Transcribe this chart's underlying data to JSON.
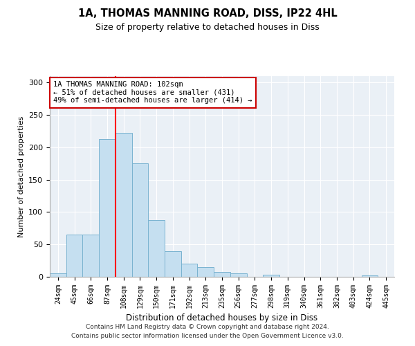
{
  "title1": "1A, THOMAS MANNING ROAD, DISS, IP22 4HL",
  "title2": "Size of property relative to detached houses in Diss",
  "xlabel": "Distribution of detached houses by size in Diss",
  "ylabel": "Number of detached properties",
  "bar_labels": [
    "24sqm",
    "45sqm",
    "66sqm",
    "87sqm",
    "108sqm",
    "129sqm",
    "150sqm",
    "171sqm",
    "192sqm",
    "213sqm",
    "235sqm",
    "256sqm",
    "277sqm",
    "298sqm",
    "319sqm",
    "340sqm",
    "361sqm",
    "382sqm",
    "403sqm",
    "424sqm",
    "445sqm"
  ],
  "bar_values": [
    5,
    65,
    65,
    213,
    222,
    175,
    88,
    40,
    20,
    15,
    7,
    5,
    0,
    3,
    0,
    0,
    0,
    0,
    0,
    2,
    0
  ],
  "bar_color": "#c5dff0",
  "bar_edge_color": "#7ab3d0",
  "red_line_x": 3.5,
  "annotation_text": "1A THOMAS MANNING ROAD: 102sqm\n← 51% of detached houses are smaller (431)\n49% of semi-detached houses are larger (414) →",
  "annotation_box_color": "#ffffff",
  "annotation_box_edge": "#cc0000",
  "footer1": "Contains HM Land Registry data © Crown copyright and database right 2024.",
  "footer2": "Contains public sector information licensed under the Open Government Licence v3.0.",
  "ylim": [
    0,
    310
  ],
  "yticks": [
    0,
    50,
    100,
    150,
    200,
    250,
    300
  ],
  "bg_color": "#eaf0f6",
  "title1_fontsize": 10.5,
  "title2_fontsize": 9,
  "tick_fontsize": 7,
  "ylabel_fontsize": 8,
  "xlabel_fontsize": 8.5
}
